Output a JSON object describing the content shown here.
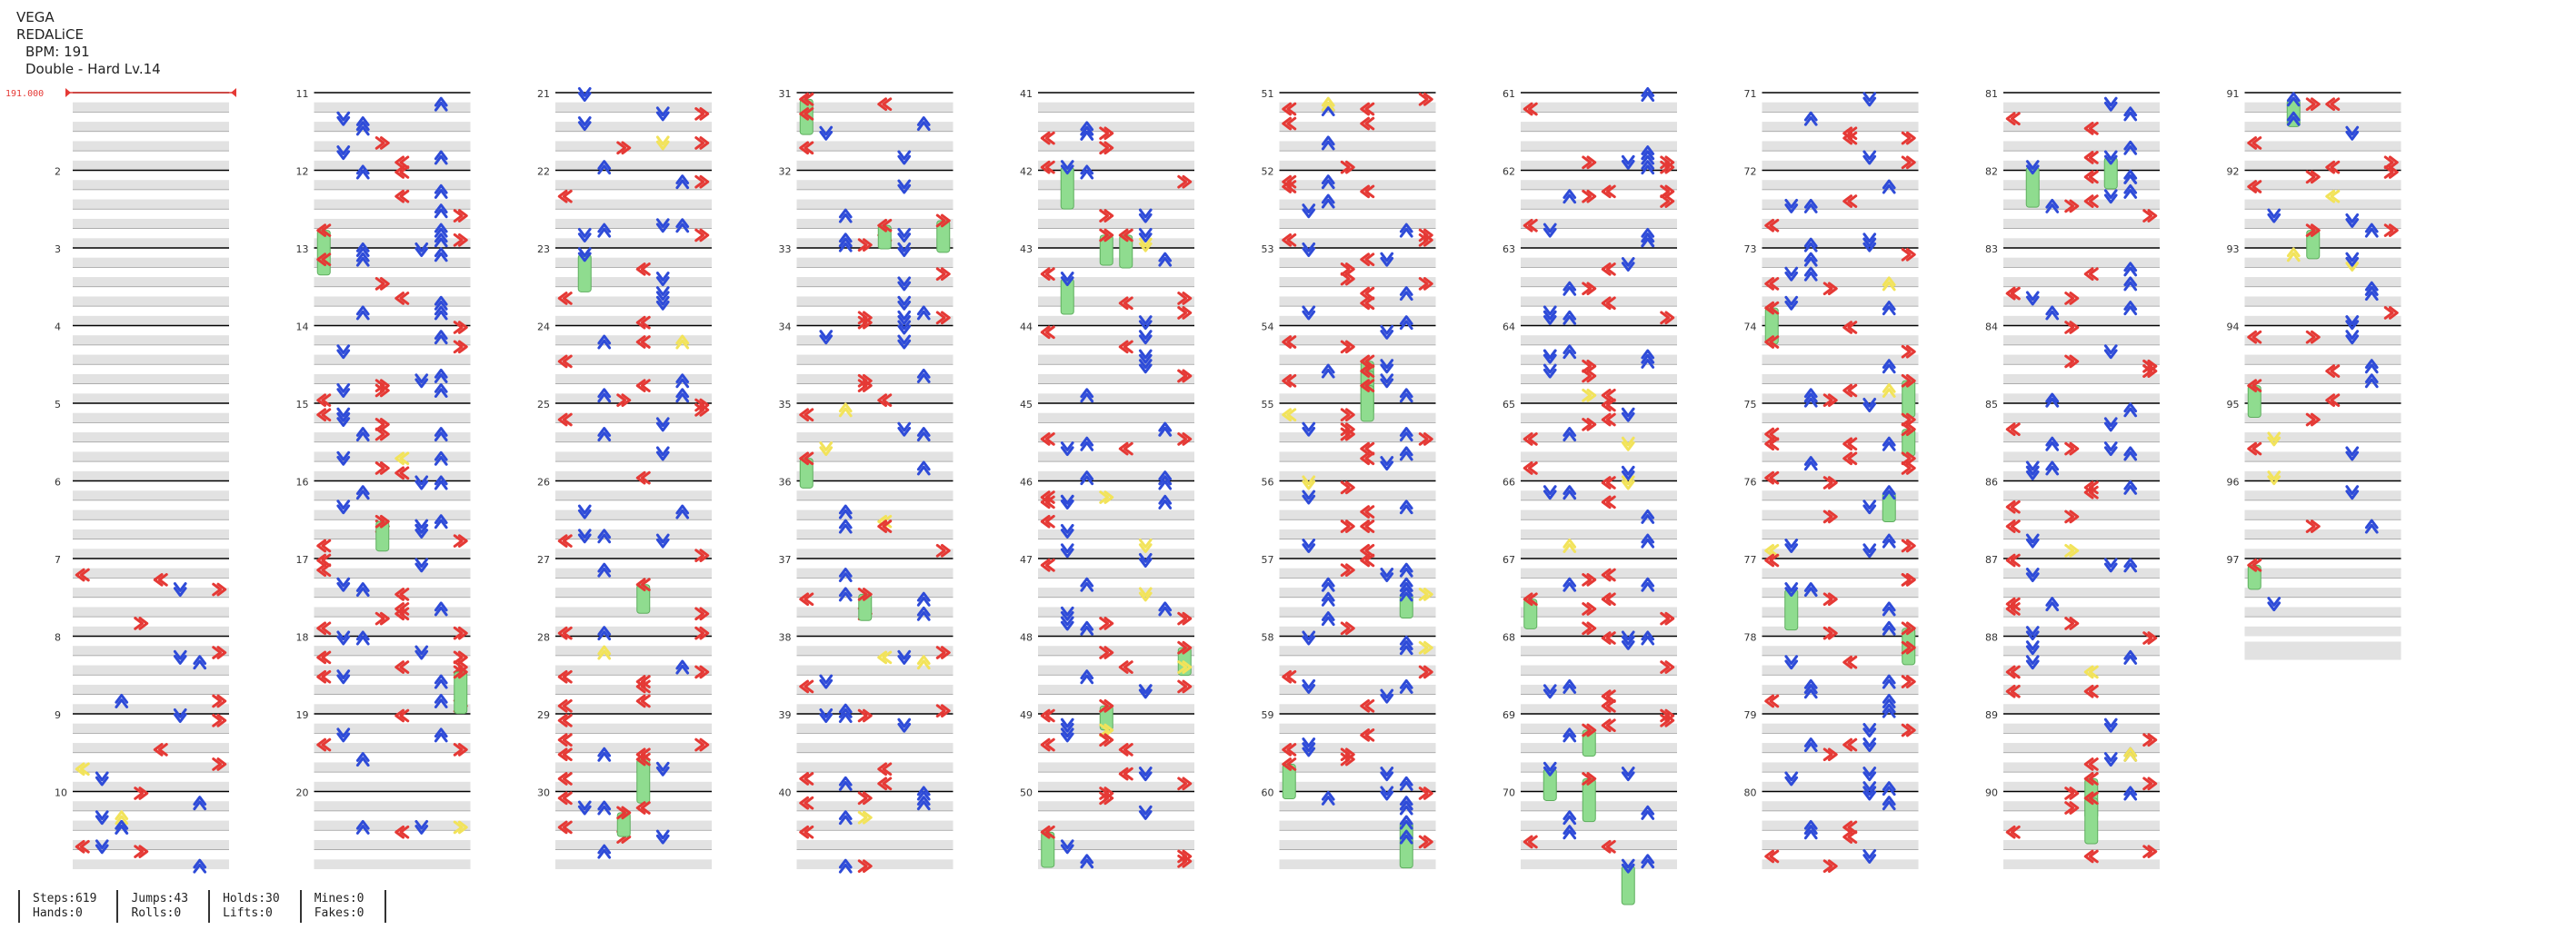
{
  "song": {
    "title": "VEGA",
    "artist": "REDALiCE",
    "bpm_label": "BPM: 191",
    "difficulty_label": "Double - Hard Lv.14"
  },
  "chart_data": {
    "type": "table",
    "chart_kind": "stepchart",
    "lanes": 8,
    "lane_colors": [
      "#e53935",
      "#2e4bd8",
      "#2e4bd8",
      "#e53935",
      "#e53935",
      "#2e4bd8",
      "#2e4bd8",
      "#e53935"
    ],
    "total_measures": 97,
    "measures_per_column": 10,
    "bpm_marker": "191.000",
    "colors": {
      "row_band": "#e2e2e2",
      "measure_line": "#000000",
      "beat_line": "#9a9a9a",
      "hold": "#8fdc8f",
      "jump_arrow": "#f2e35a",
      "bpm_line": "#e53935"
    },
    "note_density_by_measure": [
      0,
      0,
      0,
      0,
      0,
      0,
      5,
      5,
      6,
      10,
      8,
      10,
      10,
      11,
      12,
      11,
      12,
      13,
      6,
      4,
      8,
      8,
      8,
      9,
      7,
      7,
      6,
      8,
      9,
      9,
      8,
      9,
      9,
      7,
      7,
      5,
      7,
      8,
      8,
      9,
      8,
      8,
      7,
      8,
      9,
      11,
      10,
      9,
      10,
      8,
      9,
      10,
      11,
      11,
      12,
      9,
      12,
      10,
      9,
      8,
      9,
      10,
      9,
      10,
      9,
      8,
      9,
      9,
      8,
      7,
      7,
      8,
      10,
      10,
      12,
      9,
      10,
      10,
      10,
      9,
      8,
      9,
      9,
      9,
      10,
      8,
      9,
      8,
      8,
      7,
      8,
      9,
      8,
      8,
      5,
      3,
      2
    ]
  },
  "stats": [
    {
      "l1": "Steps:619",
      "l2": "Hands:0"
    },
    {
      "l1": "Jumps:43",
      "l2": "Rolls:0"
    },
    {
      "l1": "Holds:30",
      "l2": "Lifts:0"
    },
    {
      "l1": "Mines:0",
      "l2": "Fakes:0"
    }
  ]
}
